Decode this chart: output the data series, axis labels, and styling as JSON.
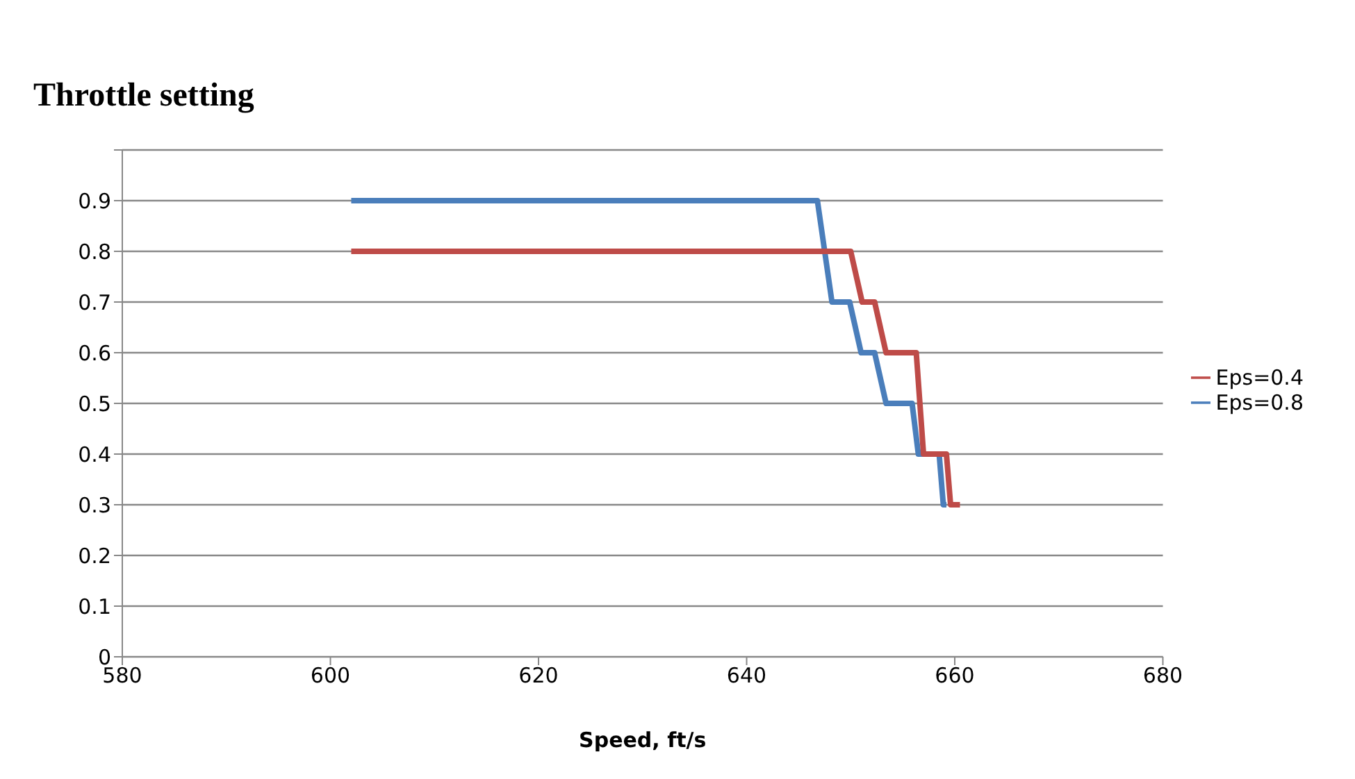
{
  "chart_data": {
    "type": "line",
    "title": "Throttle setting",
    "xlabel": "Speed, ft/s",
    "xlim": [
      580,
      680
    ],
    "xticks": [
      580,
      600,
      620,
      640,
      660,
      680
    ],
    "ylim": [
      0,
      1
    ],
    "yticks": [
      0,
      0.1,
      0.2,
      0.3,
      0.4,
      0.5,
      0.6,
      0.7,
      0.8,
      0.9,
      {
        "value": 1,
        "label": null
      }
    ],
    "grid": "y",
    "legend": "right",
    "series": [
      {
        "name": "Eps=0.8",
        "color": "#4a7ebb",
        "x": [
          602,
          646.8,
          648.2,
          649.9,
          651,
          652.3,
          653.4,
          655.9,
          656.5,
          658.5,
          658.9,
          659.2
        ],
        "values": [
          0.9,
          0.9,
          0.7,
          0.7,
          0.6,
          0.6,
          0.5,
          0.5,
          0.4,
          0.4,
          0.3,
          0.3
        ]
      },
      {
        "name": "Eps=0.4",
        "color": "#be4b48",
        "x": [
          602,
          650,
          651.1,
          652.3,
          653.4,
          656.3,
          657,
          659.2,
          659.6,
          660.5
        ],
        "values": [
          0.8,
          0.8,
          0.7,
          0.7,
          0.6,
          0.6,
          0.4,
          0.4,
          0.3,
          0.3
        ]
      }
    ]
  }
}
